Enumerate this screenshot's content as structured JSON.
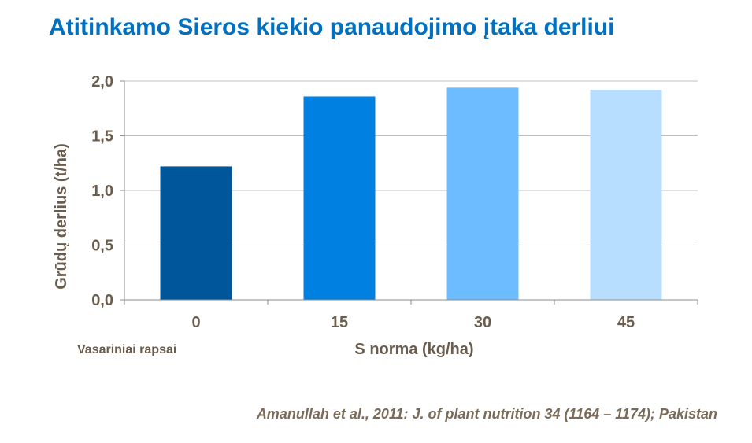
{
  "title": "Atitinkamo Sieros kiekio panaudojimo įtaka derliui",
  "crop_label": "Vasariniai  rapsai",
  "source": "Amanullah et al., 2011: J. of plant nutrition 34 (1164 – 1174); Pakistan",
  "chart_data": {
    "type": "bar",
    "title": "Atitinkamo Sieros kiekio panaudojimo įtaka derliui",
    "xlabel": "S norma (kg/ha)",
    "ylabel": "Grūdų derlius (t/ha)",
    "categories": [
      "0",
      "15",
      "30",
      "45"
    ],
    "values": [
      1.22,
      1.86,
      1.94,
      1.92
    ],
    "colors": [
      "#00569A",
      "#0080E0",
      "#6CBCFF",
      "#B8DEFF"
    ],
    "ylim": [
      0,
      2.0
    ],
    "yticks": [
      "0,0",
      "0,5",
      "1,0",
      "1,5",
      "2,0"
    ],
    "ytick_values": [
      0,
      0.5,
      1.0,
      1.5,
      2.0
    ],
    "grid": true,
    "gridline_color": "#bfbfbf",
    "axis_color": "#8c8c8c"
  }
}
